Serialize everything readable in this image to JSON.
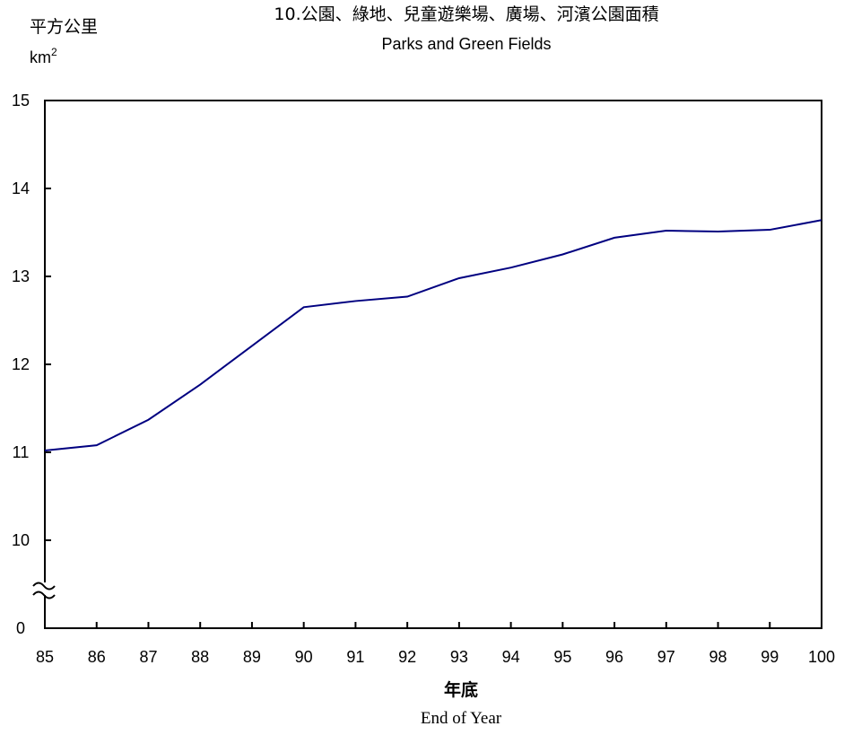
{
  "chart_data": {
    "type": "line",
    "title": "10.公園、綠地、兒童遊樂場、廣場、河濱公園面積",
    "subtitle": "Parks and Green Fields",
    "ylabel": "平方公里",
    "ylabel_unit": "km",
    "ylabel_unit_sup": "2",
    "xlabel": "年底",
    "xlabel_en": "End of Year",
    "x": [
      85,
      86,
      87,
      88,
      89,
      90,
      91,
      92,
      93,
      94,
      95,
      96,
      97,
      98,
      99,
      100
    ],
    "x_tick_labels": [
      "85",
      "86",
      "87",
      "88",
      "89",
      "90",
      "91",
      "92",
      "93",
      "94",
      "95",
      "96",
      "97",
      "98",
      "99",
      "100"
    ],
    "series": [
      {
        "values": [
          11.02,
          11.08,
          11.37,
          11.77,
          12.21,
          12.65,
          12.72,
          12.77,
          12.98,
          13.1,
          13.25,
          13.44,
          13.52,
          13.51,
          13.53,
          13.64
        ],
        "color": "#000080"
      }
    ],
    "ylim": [
      10,
      15
    ],
    "y_axis_break": true,
    "y_break_baseline_label": "0",
    "y_ticks": [
      10,
      11,
      12,
      13,
      14,
      15
    ],
    "y_tick_labels": [
      "10",
      "11",
      "12",
      "13",
      "14",
      "15"
    ],
    "grid": false,
    "legend": "none",
    "axis_color": "#000000",
    "line_color": "#000080"
  }
}
